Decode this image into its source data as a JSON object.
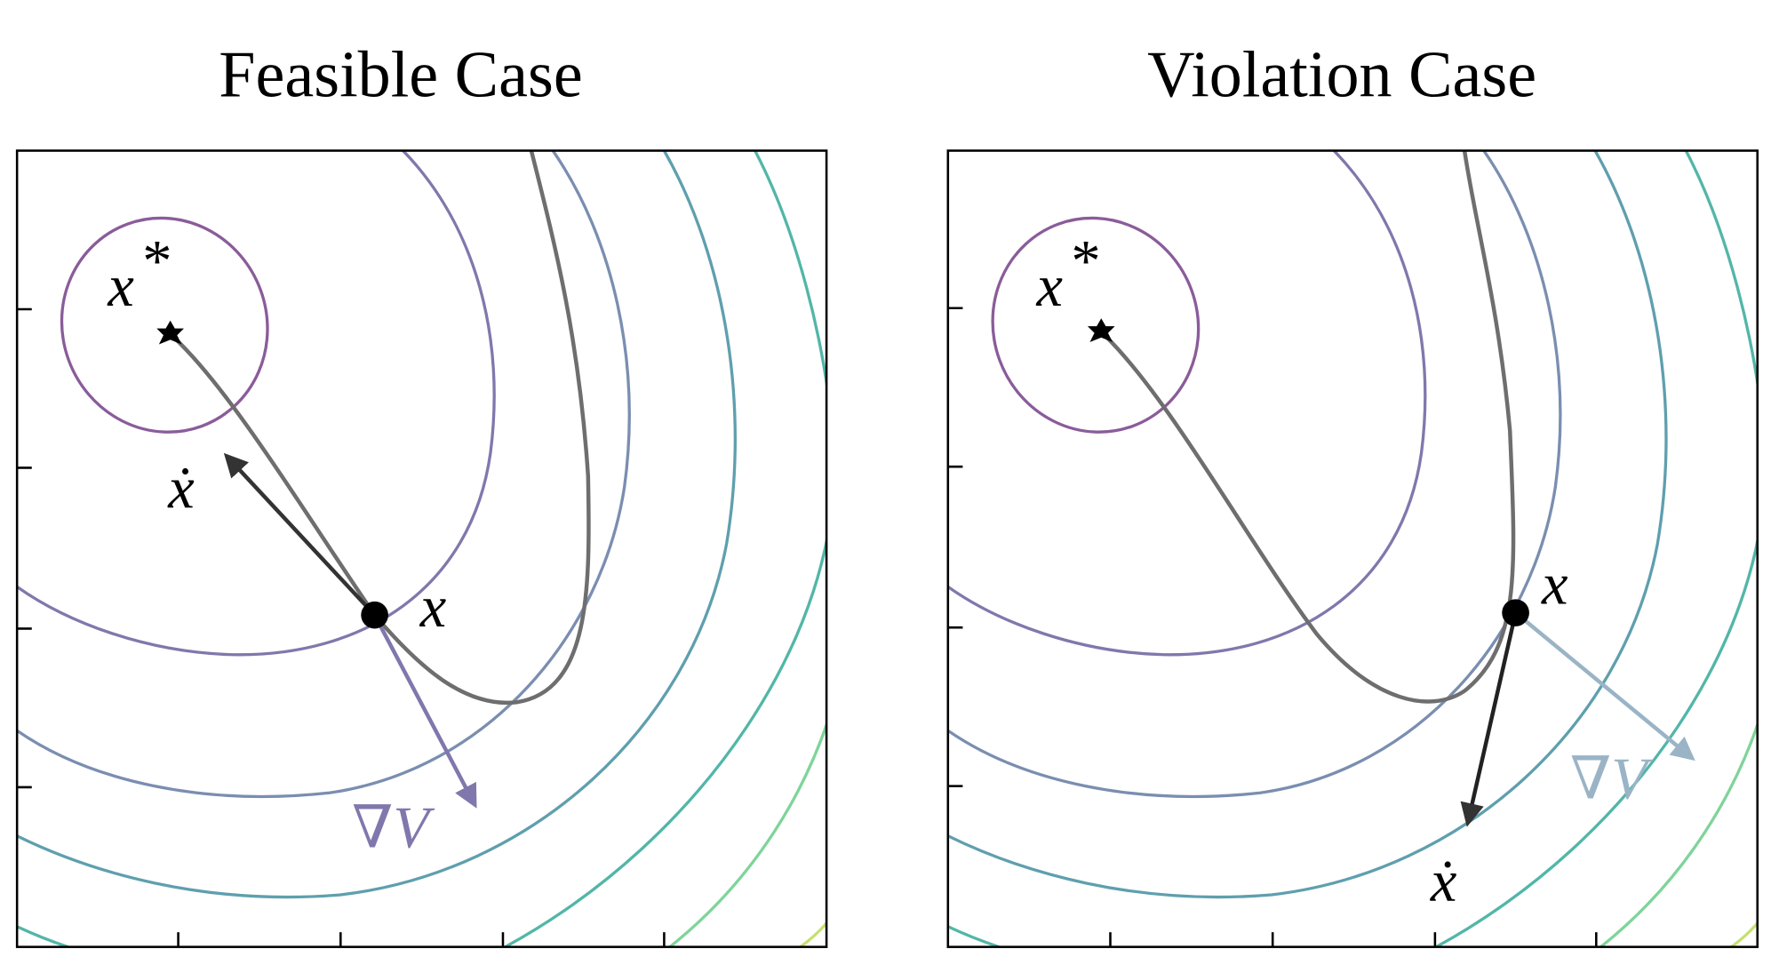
{
  "panels": [
    {
      "title": "Feasible Case",
      "labels": {
        "optimum": "x",
        "optimum_sup": "*",
        "velocity": "ẋ",
        "state": "x",
        "gradient": "∇V"
      }
    },
    {
      "title": "Violation Case",
      "labels": {
        "optimum": "x",
        "optimum_sup": "*",
        "velocity": "ẋ",
        "state": "x",
        "gradient": "∇V"
      }
    }
  ]
}
